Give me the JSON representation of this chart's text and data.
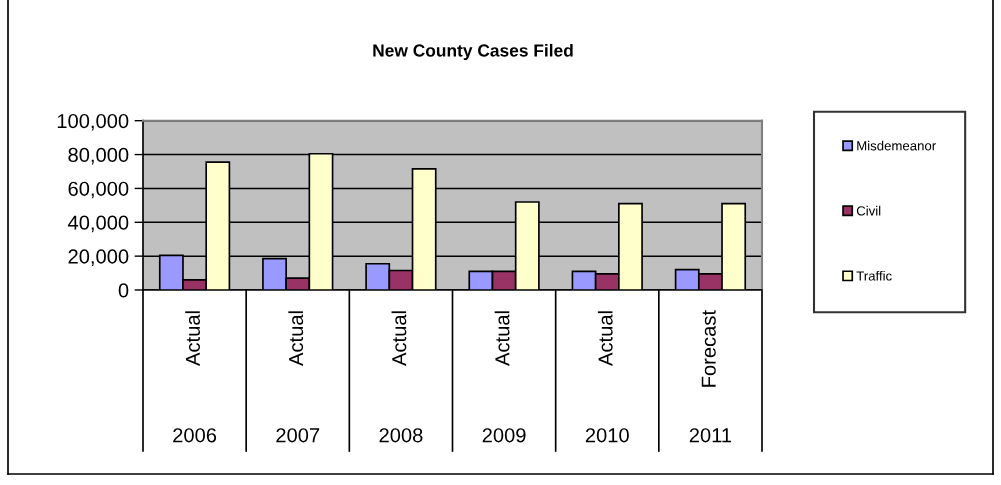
{
  "chart_data": {
    "type": "bar",
    "title": "New County Cases Filed",
    "categories": [
      "Actual\n2006",
      "Actual\n2007",
      "Actual\n2008",
      "Actual\n2009",
      "Actual\n2010",
      "Forecast\n2011"
    ],
    "series": [
      {
        "name": "Misdemeanor",
        "color": "#9999ff",
        "values": [
          20500,
          18500,
          15500,
          11000,
          11000,
          12000
        ]
      },
      {
        "name": "Civil",
        "color": "#993366",
        "values": [
          6000,
          7000,
          11500,
          11000,
          9500,
          9500
        ]
      },
      {
        "name": "Traffic",
        "color": "#ffffcc",
        "values": [
          75500,
          80500,
          71500,
          52000,
          51000,
          51000
        ]
      }
    ],
    "ylim": [
      0,
      100000
    ],
    "yticks": [
      0,
      {
        "value": 20000,
        "label": "20,000"
      },
      {
        "value": 40000,
        "label": "40,000"
      },
      {
        "value": 60000,
        "label": "60,000"
      },
      {
        "value": 80000,
        "label": "80,000"
      },
      {
        "value": 100000,
        "label": "100,000"
      }
    ],
    "grid": "y",
    "legend": "right"
  }
}
